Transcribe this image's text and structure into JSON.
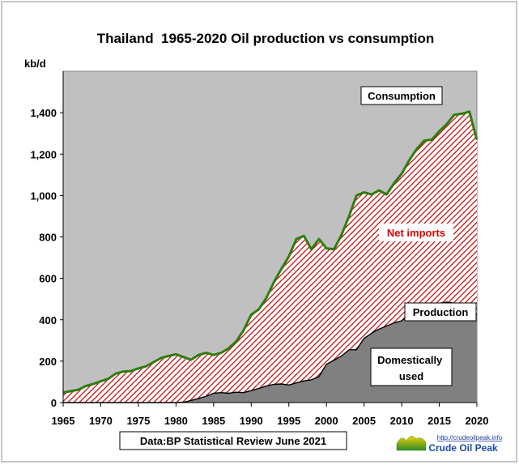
{
  "chart_data": {
    "type": "area",
    "title": "Thailand  1965-2020 Oil production vs consumption",
    "ylabel": "kb/d",
    "xlabel": "",
    "xlim": [
      1965,
      2020
    ],
    "ylim": [
      0,
      1600
    ],
    "x_ticks": [
      1965,
      1970,
      1975,
      1980,
      1985,
      1990,
      1995,
      2000,
      2005,
      2010,
      2015,
      2020
    ],
    "y_ticks": [
      0,
      200,
      400,
      600,
      800,
      1000,
      1200,
      1400
    ],
    "y_tick_labels": [
      "0",
      "200",
      "400",
      "600",
      "800",
      "1,000",
      "1,200",
      "1,400"
    ],
    "grid": false,
    "x": [
      1965,
      1966,
      1967,
      1968,
      1969,
      1970,
      1971,
      1972,
      1973,
      1974,
      1975,
      1976,
      1977,
      1978,
      1979,
      1980,
      1981,
      1982,
      1983,
      1984,
      1985,
      1986,
      1987,
      1988,
      1989,
      1990,
      1991,
      1992,
      1993,
      1994,
      1995,
      1996,
      1997,
      1998,
      1999,
      2000,
      2001,
      2002,
      2003,
      2004,
      2005,
      2006,
      2007,
      2008,
      2009,
      2010,
      2011,
      2012,
      2013,
      2014,
      2015,
      2016,
      2017,
      2018,
      2019,
      2020
    ],
    "series": [
      {
        "name": "Consumption",
        "values": [
          48,
          55,
          62,
          80,
          90,
          103,
          115,
          140,
          150,
          152,
          165,
          175,
          195,
          215,
          225,
          233,
          220,
          207,
          230,
          240,
          230,
          240,
          262,
          295,
          350,
          425,
          450,
          505,
          580,
          645,
          705,
          790,
          805,
          740,
          790,
          745,
          740,
          810,
          900,
          1000,
          1015,
          1005,
          1025,
          1005,
          1060,
          1105,
          1170,
          1225,
          1265,
          1270,
          1310,
          1345,
          1390,
          1395,
          1405,
          1270
        ],
        "color": "#2e7d0e"
      },
      {
        "name": "Production",
        "values": [
          0,
          0,
          0,
          0,
          0,
          0,
          0,
          0,
          0,
          0,
          0,
          0,
          0,
          0,
          0,
          0,
          2,
          10,
          20,
          30,
          45,
          48,
          45,
          50,
          48,
          58,
          68,
          80,
          88,
          90,
          85,
          95,
          105,
          110,
          125,
          185,
          205,
          225,
          255,
          255,
          310,
          335,
          355,
          370,
          385,
          395,
          425,
          470,
          465,
          470,
          480,
          485,
          480,
          470,
          475,
          425
        ],
        "color": "#000000"
      }
    ],
    "area_labels": {
      "net_imports": "Net imports",
      "domestic": "Domestically used"
    },
    "colors": {
      "domestic_fill": "#808080",
      "hatch_red": "#c00000",
      "plot_bg": "#c0c0c0",
      "consumption_line": "#2e7d0e",
      "net_imports_text": "#e00000"
    },
    "source_note": "Data:BP Statistical Review June 2021",
    "logo": {
      "url": "http://crudeoilpeak.info",
      "name": "Crude Oil Peak"
    }
  }
}
